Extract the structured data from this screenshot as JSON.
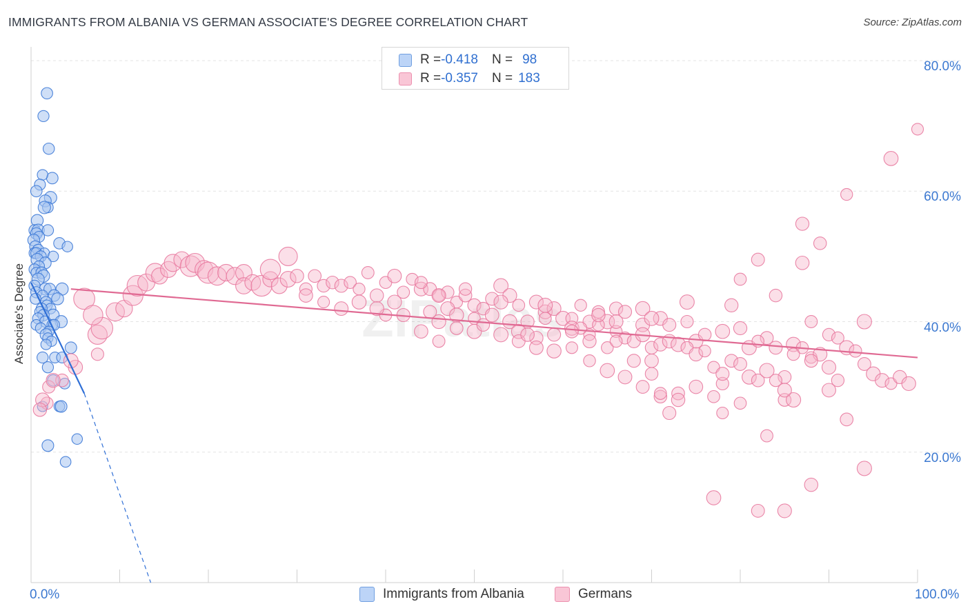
{
  "title": "IMMIGRANTS FROM ALBANIA VS GERMAN ASSOCIATE'S DEGREE CORRELATION CHART",
  "source": "Source: ZipAtlas.com",
  "watermark": "ZIPatlas",
  "stats": [
    {
      "r_label": "R = ",
      "r_value": "-0.418",
      "n_label": "N = ",
      "n_value": " 98",
      "color": "#bcd4f7",
      "border": "#6f9ee0"
    },
    {
      "r_label": "R = ",
      "r_value": "-0.357",
      "n_label": "N = ",
      "n_value": "183",
      "color": "#f9c6d6",
      "border": "#ec8fae"
    }
  ],
  "chart_data": {
    "type": "scatter",
    "ylabel": "Associate's Degree",
    "x_tick_labels": [
      "0.0%",
      "100.0%"
    ],
    "y_tick_labels": [
      "80.0%",
      "60.0%",
      "40.0%",
      "20.0%"
    ],
    "xlim": [
      0,
      100
    ],
    "ylim": [
      0,
      82
    ],
    "y_ticks": [
      80,
      60,
      40,
      20
    ],
    "grid": true,
    "legend_position": "bottom",
    "series": [
      {
        "name": "Immigrants from Albania",
        "color": "#3b78d6",
        "fill": "#a8c5f0",
        "trend": {
          "x0": 0,
          "y0": 46.0,
          "x1": 6.0,
          "y1": 29.0,
          "dash_x1": 13.5,
          "dash_y1": 0
        },
        "points": [
          [
            1.8,
            75
          ],
          [
            1.4,
            71.5
          ],
          [
            2.0,
            66.5
          ],
          [
            2.4,
            62
          ],
          [
            1.3,
            62.5
          ],
          [
            1.0,
            61
          ],
          [
            0.6,
            60
          ],
          [
            2.2,
            59
          ],
          [
            1.6,
            58.5
          ],
          [
            1.9,
            57.5
          ],
          [
            1.5,
            57.5
          ],
          [
            0.7,
            55.5
          ],
          [
            0.4,
            54
          ],
          [
            0.8,
            54
          ],
          [
            1.9,
            54
          ],
          [
            0.6,
            53.5
          ],
          [
            0.9,
            53
          ],
          [
            0.3,
            52.5
          ],
          [
            3.2,
            52
          ],
          [
            0.5,
            51.5
          ],
          [
            0.8,
            51
          ],
          [
            4.1,
            51.5
          ],
          [
            0.4,
            50.5
          ],
          [
            0.6,
            50.5
          ],
          [
            1.5,
            50.5
          ],
          [
            2.5,
            50
          ],
          [
            1.1,
            50
          ],
          [
            0.7,
            49.5
          ],
          [
            1.6,
            49
          ],
          [
            0.9,
            48.5
          ],
          [
            0.4,
            48
          ],
          [
            0.6,
            47.5
          ],
          [
            1.2,
            47.5
          ],
          [
            1.4,
            47
          ],
          [
            0.8,
            46.5
          ],
          [
            0.4,
            45.5
          ],
          [
            1.6,
            45
          ],
          [
            2.1,
            45
          ],
          [
            3.5,
            45
          ],
          [
            0.6,
            44.5
          ],
          [
            1.3,
            44
          ],
          [
            2.6,
            44
          ],
          [
            3.0,
            43.5
          ],
          [
            0.5,
            43.5
          ],
          [
            1.7,
            43
          ],
          [
            1.8,
            42.5
          ],
          [
            2.2,
            42
          ],
          [
            1.2,
            42
          ],
          [
            1.0,
            41.5
          ],
          [
            2.5,
            41
          ],
          [
            1.4,
            41
          ],
          [
            0.8,
            40.5
          ],
          [
            3.4,
            40
          ],
          [
            1.6,
            40
          ],
          [
            2.4,
            39.5
          ],
          [
            2.6,
            39.5
          ],
          [
            0.6,
            39.5
          ],
          [
            1.1,
            39
          ],
          [
            2.0,
            38.5
          ],
          [
            1.7,
            38
          ],
          [
            1.9,
            37.5
          ],
          [
            2.3,
            37
          ],
          [
            1.7,
            36.5
          ],
          [
            4.5,
            36
          ],
          [
            2.7,
            34.5
          ],
          [
            1.3,
            34.5
          ],
          [
            3.5,
            34.5
          ],
          [
            1.9,
            33
          ],
          [
            2.5,
            31
          ],
          [
            3.8,
            30.5
          ],
          [
            1.3,
            27
          ],
          [
            3.2,
            27
          ],
          [
            3.4,
            27
          ],
          [
            5.2,
            22
          ],
          [
            1.9,
            21
          ],
          [
            3.9,
            18.5
          ]
        ]
      },
      {
        "name": "Germans",
        "color": "#e86f99",
        "fill": "#f6b9cc",
        "trend": {
          "x0": 4.5,
          "y0": 45.0,
          "x1": 100,
          "y1": 34.5
        },
        "points": [
          [
            100,
            69.5
          ],
          [
            97,
            65
          ],
          [
            92,
            59.5
          ],
          [
            87,
            55
          ],
          [
            89,
            52
          ],
          [
            82,
            49.5
          ],
          [
            87,
            49
          ],
          [
            80,
            46.5
          ],
          [
            84,
            44
          ],
          [
            79,
            42.5
          ],
          [
            74,
            43
          ],
          [
            71,
            40.5
          ],
          [
            88,
            40
          ],
          [
            94,
            40
          ],
          [
            75,
            37
          ],
          [
            83,
            37.5
          ],
          [
            81,
            36
          ],
          [
            85,
            31.5
          ],
          [
            75,
            30
          ],
          [
            78,
            30.5
          ],
          [
            69,
            39.5
          ],
          [
            66,
            42
          ],
          [
            70,
            34
          ],
          [
            73,
            29
          ],
          [
            77,
            28.5
          ],
          [
            71,
            28.5
          ],
          [
            72,
            26
          ],
          [
            78,
            26
          ],
          [
            80,
            27.5
          ],
          [
            85,
            28
          ],
          [
            86,
            28
          ],
          [
            90,
            29.5
          ],
          [
            91,
            31
          ],
          [
            92,
            25
          ],
          [
            83,
            22.5
          ],
          [
            88,
            15
          ],
          [
            94,
            17.5
          ],
          [
            77,
            13
          ],
          [
            82,
            11
          ],
          [
            85,
            11
          ],
          [
            7.5,
            38
          ],
          [
            8,
            39
          ],
          [
            9.5,
            41.5
          ],
          [
            10.5,
            42
          ],
          [
            11.5,
            44
          ],
          [
            12,
            45.5
          ],
          [
            13,
            46
          ],
          [
            14,
            47.5
          ],
          [
            14.5,
            47
          ],
          [
            15.5,
            48
          ],
          [
            16,
            49
          ],
          [
            17,
            49.5
          ],
          [
            18,
            48.5
          ],
          [
            18.5,
            49
          ],
          [
            19.5,
            48
          ],
          [
            20,
            47.5
          ],
          [
            21,
            47
          ],
          [
            22,
            47.5
          ],
          [
            23,
            47
          ],
          [
            24,
            47.5
          ],
          [
            24,
            45.5
          ],
          [
            25,
            46
          ],
          [
            26,
            45.5
          ],
          [
            27,
            46.5
          ],
          [
            28,
            45.5
          ],
          [
            29,
            46.5
          ],
          [
            30,
            47
          ],
          [
            31,
            45
          ],
          [
            32,
            47
          ],
          [
            33,
            45.5
          ],
          [
            34,
            46
          ],
          [
            35,
            45.5
          ],
          [
            36,
            46
          ],
          [
            37,
            45
          ],
          [
            38,
            47.5
          ],
          [
            39,
            44
          ],
          [
            40,
            46
          ],
          [
            41,
            47
          ],
          [
            42,
            44.5
          ],
          [
            43,
            46.5
          ],
          [
            44,
            45
          ],
          [
            45,
            45
          ],
          [
            46,
            44
          ],
          [
            47,
            44.5
          ],
          [
            48,
            43
          ],
          [
            49,
            44
          ],
          [
            50,
            42.5
          ],
          [
            51,
            42
          ],
          [
            52,
            43.5
          ],
          [
            53,
            45.5
          ],
          [
            54,
            44
          ],
          [
            55,
            42.5
          ],
          [
            56,
            40
          ],
          [
            57,
            43
          ],
          [
            58,
            41.5
          ],
          [
            59,
            42
          ],
          [
            60,
            40.5
          ],
          [
            61,
            40.5
          ],
          [
            62,
            42.5
          ],
          [
            63,
            40
          ],
          [
            64,
            41.5
          ],
          [
            65,
            40
          ],
          [
            66,
            38.5
          ],
          [
            67,
            37.5
          ],
          [
            68,
            37
          ],
          [
            69,
            38
          ],
          [
            70,
            36
          ],
          [
            71,
            36.5
          ],
          [
            72,
            37
          ],
          [
            73,
            36.5
          ],
          [
            74,
            36
          ],
          [
            75,
            35
          ],
          [
            76,
            35.5
          ],
          [
            77,
            33
          ],
          [
            78,
            32
          ],
          [
            79,
            34
          ],
          [
            80,
            33.5
          ],
          [
            81,
            31.5
          ],
          [
            82,
            31
          ],
          [
            83,
            32.5
          ],
          [
            84,
            31
          ],
          [
            85,
            29.5
          ],
          [
            86,
            36.5
          ],
          [
            87,
            36
          ],
          [
            88,
            34.5
          ],
          [
            89,
            35
          ],
          [
            90,
            38
          ],
          [
            91,
            37.5
          ],
          [
            92,
            36
          ],
          [
            93,
            35.5
          ],
          [
            94,
            33.5
          ],
          [
            95,
            32
          ],
          [
            96,
            31
          ],
          [
            97,
            30.5
          ],
          [
            98,
            31.5
          ],
          [
            99,
            30.5
          ],
          [
            40,
            41
          ],
          [
            41,
            43
          ],
          [
            46,
            40
          ],
          [
            44,
            46
          ],
          [
            45,
            41.5
          ],
          [
            46,
            44
          ],
          [
            47,
            42
          ],
          [
            48,
            41
          ],
          [
            50,
            40.5
          ],
          [
            52,
            41
          ],
          [
            54,
            40
          ],
          [
            55,
            38.5
          ],
          [
            57,
            37.5
          ],
          [
            59,
            38
          ],
          [
            61,
            39
          ],
          [
            63,
            38
          ],
          [
            65,
            36
          ],
          [
            66,
            40
          ],
          [
            67,
            41.5
          ],
          [
            69,
            42
          ],
          [
            70,
            40.5
          ],
          [
            72,
            39.5
          ],
          [
            74,
            40
          ],
          [
            76,
            38
          ],
          [
            78,
            38.5
          ],
          [
            80,
            39
          ],
          [
            82,
            37
          ],
          [
            84,
            36
          ],
          [
            86,
            35
          ],
          [
            88,
            34
          ],
          [
            90,
            33
          ],
          [
            27,
            48
          ],
          [
            29,
            50
          ],
          [
            31,
            44
          ],
          [
            33,
            43
          ],
          [
            35,
            42
          ],
          [
            37,
            43
          ],
          [
            39,
            42
          ],
          [
            42,
            41
          ],
          [
            44,
            38.5
          ],
          [
            46,
            37
          ],
          [
            48,
            39
          ],
          [
            50,
            38.5
          ],
          [
            51,
            39.5
          ],
          [
            53,
            38
          ],
          [
            55,
            37
          ],
          [
            57,
            36
          ],
          [
            59,
            35.5
          ],
          [
            61,
            36
          ],
          [
            63,
            34
          ],
          [
            65,
            32.5
          ],
          [
            67,
            31.5
          ],
          [
            69,
            30
          ],
          [
            71,
            29
          ],
          [
            73,
            28
          ],
          [
            62,
            39
          ],
          [
            63,
            37
          ],
          [
            64,
            39.5
          ],
          [
            58,
            42.5
          ],
          [
            56,
            38
          ],
          [
            49,
            45
          ],
          [
            53,
            43
          ],
          [
            58,
            40.5
          ],
          [
            61,
            38.5
          ],
          [
            64,
            41
          ],
          [
            66,
            37
          ],
          [
            68,
            34
          ],
          [
            70,
            32
          ],
          [
            6,
            43.5
          ],
          [
            7,
            41
          ],
          [
            7.5,
            35
          ],
          [
            5,
            33
          ],
          [
            4.5,
            34
          ],
          [
            3.5,
            31
          ],
          [
            2,
            30
          ],
          [
            1.8,
            27.5
          ],
          [
            2.5,
            31
          ],
          [
            1.3,
            28
          ],
          [
            1.0,
            26.5
          ]
        ]
      }
    ]
  },
  "legend": [
    {
      "label": "Immigrants from Albania",
      "color": "#bcd4f7",
      "border": "#6f9ee0"
    },
    {
      "label": "Germans",
      "color": "#f9c6d6",
      "border": "#ec8fae"
    }
  ]
}
